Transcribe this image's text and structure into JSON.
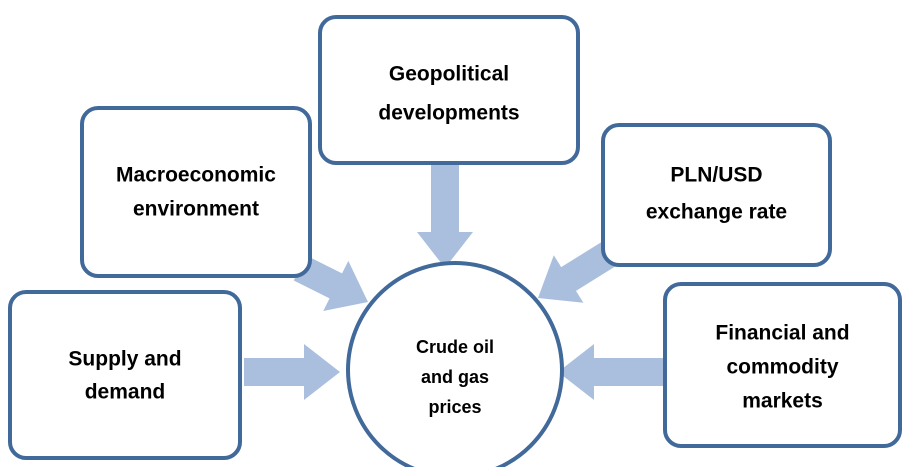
{
  "center": {
    "lines": [
      "Crude oil",
      "and gas",
      "prices"
    ]
  },
  "nodes": [
    {
      "lines": [
        "Geopolitical",
        "developments"
      ]
    },
    {
      "lines": [
        "Macroeconomic",
        "environment"
      ]
    },
    {
      "lines": [
        "PLN/USD",
        "exchange rate"
      ]
    },
    {
      "lines": [
        "Supply and",
        "demand"
      ]
    },
    {
      "lines": [
        "Financial and",
        "commodity",
        "markets"
      ]
    }
  ]
}
